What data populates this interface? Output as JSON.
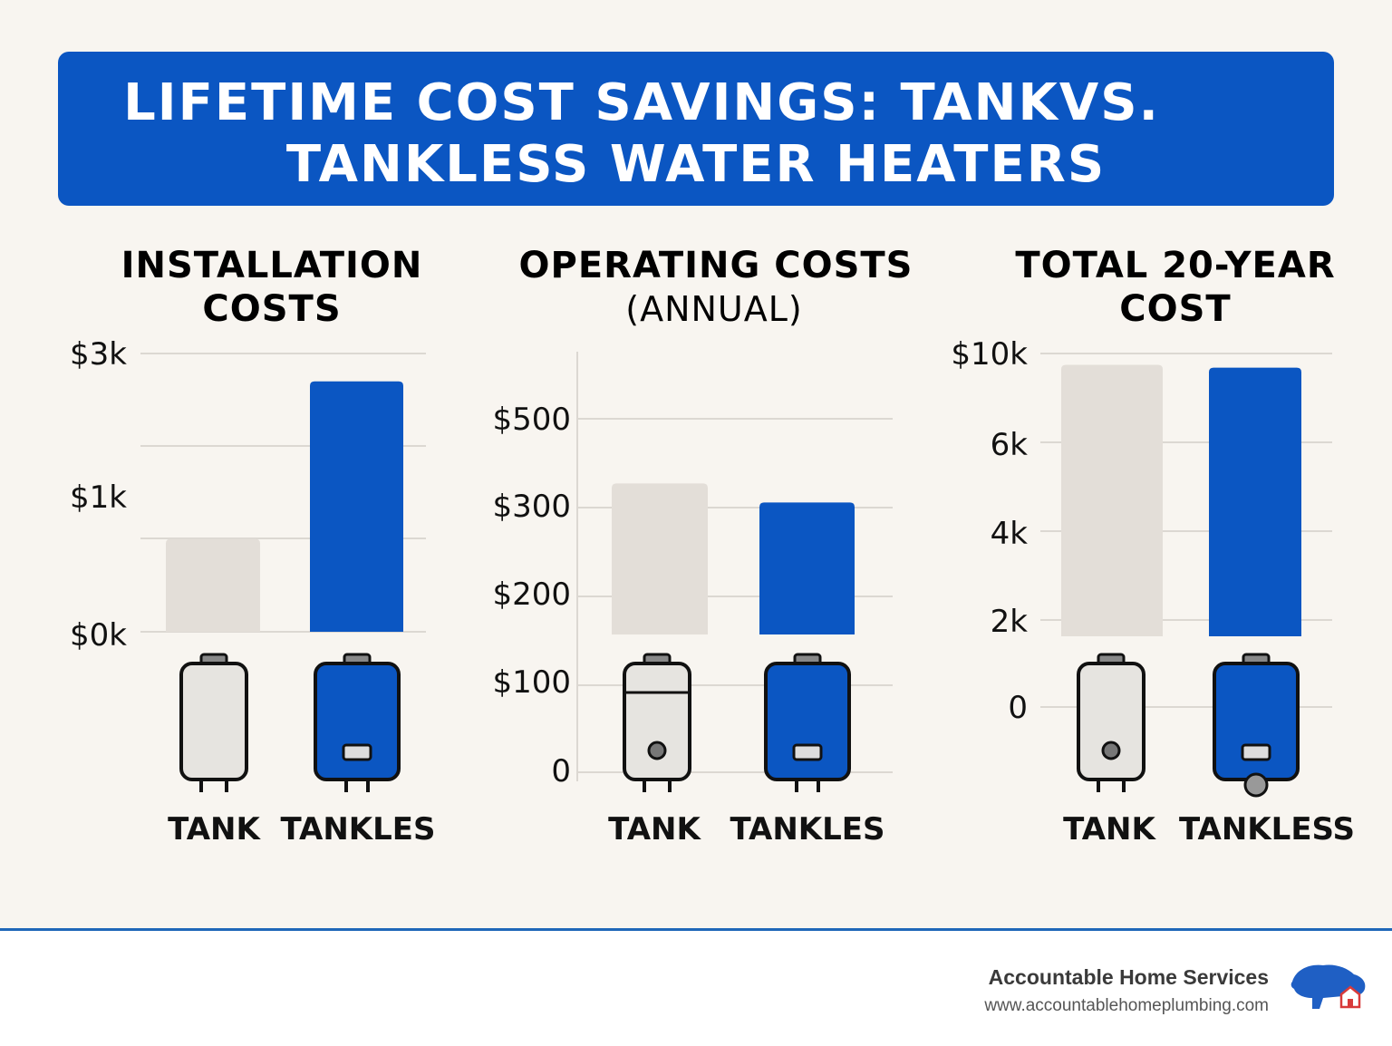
{
  "header": {
    "title_line1": "LIFETIME COST SAVINGS: TANKVS.",
    "title_line2": "TANKLESS WATER HEATERS"
  },
  "colors": {
    "accent": "#0b56c2",
    "tank_bar": "#e3ded8",
    "background": "#f8f5f0"
  },
  "chart_data": [
    {
      "type": "bar",
      "title": "INSTALLATION COSTS",
      "title_lines": [
        "INSTALLATION",
        "COSTS"
      ],
      "subtitle": "",
      "categories": [
        "TANK",
        "TANKLES"
      ],
      "values": [
        1000,
        2700
      ],
      "yticks": [
        {
          "label": "$3k",
          "value": 3000
        },
        {
          "label": "$1k",
          "value": 1000
        },
        {
          "label": "$0k",
          "value": 0
        }
      ],
      "ylim": [
        0,
        3000
      ],
      "grid": true
    },
    {
      "type": "bar",
      "title": "OPERATING COSTS",
      "title_lines": [
        "OPERATING COSTS"
      ],
      "subtitle": "(ANNUAL)",
      "categories": [
        "TANK",
        "TANKLES"
      ],
      "values": [
        350,
        306
      ],
      "yticks": [
        {
          "label": "$500",
          "value": 500
        },
        {
          "label": "$300",
          "value": 300
        },
        {
          "label": "$200",
          "value": 200
        },
        {
          "label": "$100",
          "value": 100
        },
        {
          "label": "0",
          "value": 0
        }
      ],
      "ylim": [
        0,
        500
      ],
      "grid": true
    },
    {
      "type": "bar",
      "title": "TOTAL 20-YEAR COST",
      "title_lines": [
        "TOTAL 20-YEAR",
        "COST"
      ],
      "subtitle": "",
      "categories": [
        "TANK",
        "TANKLESS"
      ],
      "values": [
        9600,
        9500
      ],
      "yticks": [
        {
          "label": "$10k",
          "value": 10000
        },
        {
          "label": "6k",
          "value": 6000
        },
        {
          "label": "4k",
          "value": 4000
        },
        {
          "label": "2k",
          "value": 2000
        },
        {
          "label": "0",
          "value": 0
        }
      ],
      "ylim": [
        0,
        10000
      ],
      "grid": true
    }
  ],
  "icons": [
    "tank-heater-icon",
    "tankless-heater-icon"
  ],
  "footer": {
    "brand": "Accountable Home Services",
    "url": "www.accountablehomeplumbing.com",
    "logo_icon": "bison-house-logo-icon"
  }
}
